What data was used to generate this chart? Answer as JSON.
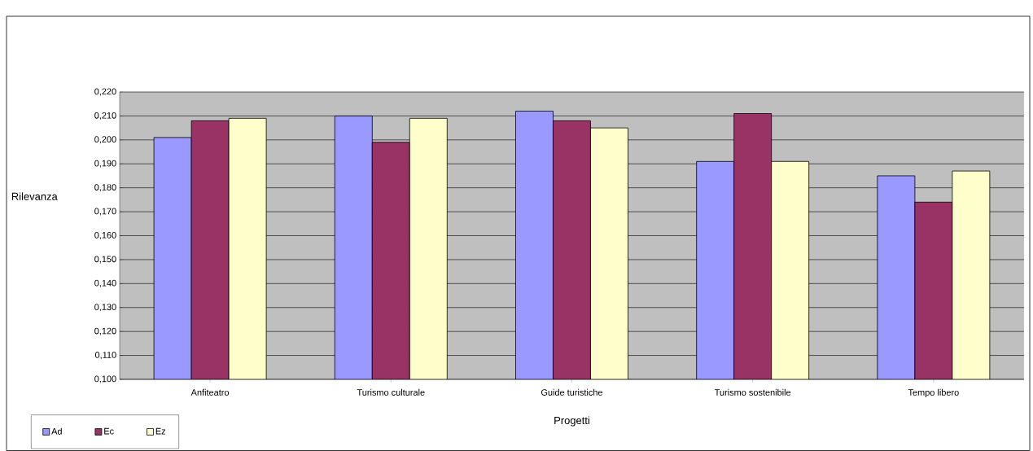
{
  "chart_data": {
    "type": "bar",
    "xlabel": "Progetti",
    "ylabel": "Rilevanza",
    "categories": [
      "Anfiteatro",
      "Turismo culturale",
      "Guide turistiche",
      "Turismo sostenibile",
      "Tempo libero"
    ],
    "series": [
      {
        "name": "Ad",
        "color": "#9999ff",
        "values": [
          0.201,
          0.21,
          0.212,
          0.191,
          0.185
        ]
      },
      {
        "name": "Ec",
        "color": "#993366",
        "values": [
          0.208,
          0.199,
          0.208,
          0.211,
          0.174
        ]
      },
      {
        "name": "Ez",
        "color": "#ffffcc",
        "values": [
          0.209,
          0.209,
          0.205,
          0.191,
          0.187
        ]
      }
    ],
    "ylim": [
      0.1,
      0.22
    ],
    "yticks": [
      {
        "value": 0.1,
        "label": "0,100"
      },
      {
        "value": 0.11,
        "label": "0,110"
      },
      {
        "value": 0.12,
        "label": "0,120"
      },
      {
        "value": 0.13,
        "label": "0,130"
      },
      {
        "value": 0.14,
        "label": "0,140"
      },
      {
        "value": 0.15,
        "label": "0,150"
      },
      {
        "value": 0.16,
        "label": "0,160"
      },
      {
        "value": 0.17,
        "label": "0,170"
      },
      {
        "value": 0.18,
        "label": "0,180"
      },
      {
        "value": 0.19,
        "label": "0,190"
      },
      {
        "value": 0.2,
        "label": "0,200"
      },
      {
        "value": 0.21,
        "label": "0,210"
      },
      {
        "value": 0.22,
        "label": "0,220"
      }
    ],
    "grid": "y",
    "legend": "bottom left"
  }
}
